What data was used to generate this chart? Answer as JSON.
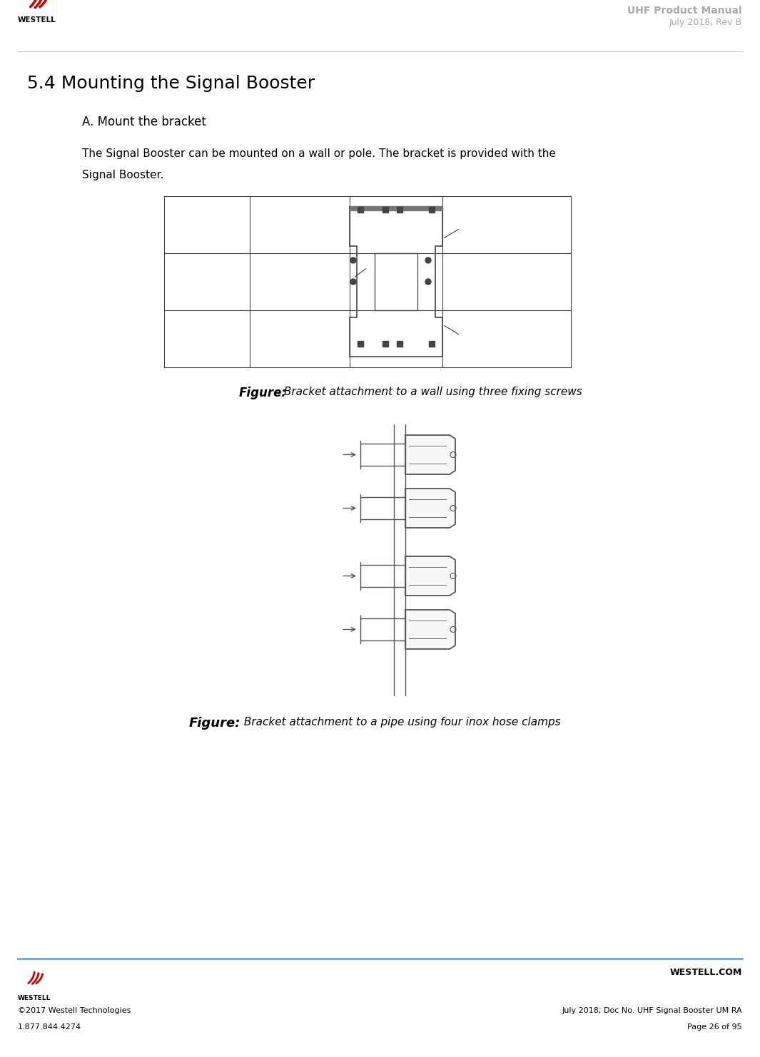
{
  "page_width": 10.65,
  "page_height": 14.82,
  "dpi": 100,
  "bg_color": "#ffffff",
  "header_title_line1": "UHF Product Manual",
  "header_title_line2": "July 2018, Rev B",
  "header_title_color": "#aaaaaa",
  "section_title": "5.4 Mounting the Signal Booster",
  "section_title_size": 18,
  "subsection_title": "A. Mount the bracket",
  "subsection_title_size": 12,
  "body_text_line1": "The Signal Booster can be mounted on a wall or pole. The bracket is provided with the",
  "body_text_line2": "Signal Booster.",
  "body_text_size": 11,
  "figure1_caption_bold": "Figure:",
  "figure1_caption_italic": " Bracket attachment to a wall using three fixing screws",
  "figure2_caption_bold": "Figure:",
  "figure2_caption_italic": " Bracket attachment to a pipe using four inox hose clamps",
  "caption_bold_size": 12,
  "caption_italic_size": 11,
  "footer_line_color": "#5aaaee",
  "footer_copyright": "©2017 Westell Technologies",
  "footer_phone": "1.877.844.4274",
  "footer_website": "WESTELL.COM",
  "footer_doc": "July 2018; Doc No. UHF Signal Booster UM RA",
  "footer_page": "Page 26 of 95",
  "footer_text_size": 8,
  "line_color": "#333333",
  "wall_color": "#ffffff",
  "bracket_color": "#ffffff"
}
